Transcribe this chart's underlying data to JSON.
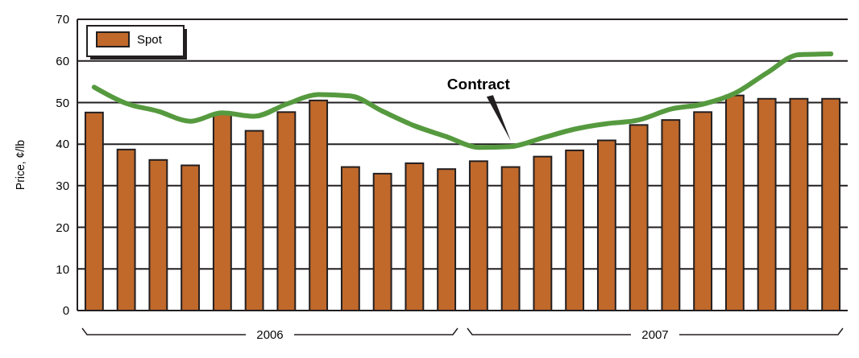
{
  "chart_data": {
    "type": "bar",
    "ylabel": "Price, ¢/lb",
    "categories": [
      null,
      null,
      null,
      null,
      null,
      null,
      null,
      null,
      null,
      null,
      null,
      null,
      null,
      null,
      null,
      null,
      null,
      null,
      null,
      null,
      null,
      null,
      null,
      null
    ],
    "series": [
      {
        "name": "Spot",
        "color": "#c0692b",
        "values": [
          47.6,
          38.7,
          36.2,
          34.9,
          47.2,
          43.2,
          47.7,
          50.5,
          34.5,
          32.9,
          35.4,
          34.0,
          35.9,
          34.5,
          37.0,
          38.5,
          40.9,
          44.6,
          45.8,
          47.7,
          51.7,
          50.9,
          50.9,
          50.9
        ]
      },
      {
        "name": "Contract",
        "type": "line",
        "color": "#569a3f",
        "values": [
          53.7,
          49.8,
          47.9,
          45.5,
          47.5,
          46.7,
          49.6,
          51.9,
          51.6,
          47.9,
          44.4,
          41.8,
          39.2,
          39.4,
          41.5,
          43.6,
          44.9,
          45.8,
          48.4,
          49.6,
          52.2,
          57.1,
          61.5,
          61.7
        ]
      }
    ],
    "annotations": [
      "2006",
      "2007"
    ],
    "ylim": [
      0,
      70
    ],
    "yticks": [
      0,
      10,
      20,
      30,
      40,
      50,
      60,
      70
    ],
    "grid": "y",
    "legend": "top left"
  }
}
